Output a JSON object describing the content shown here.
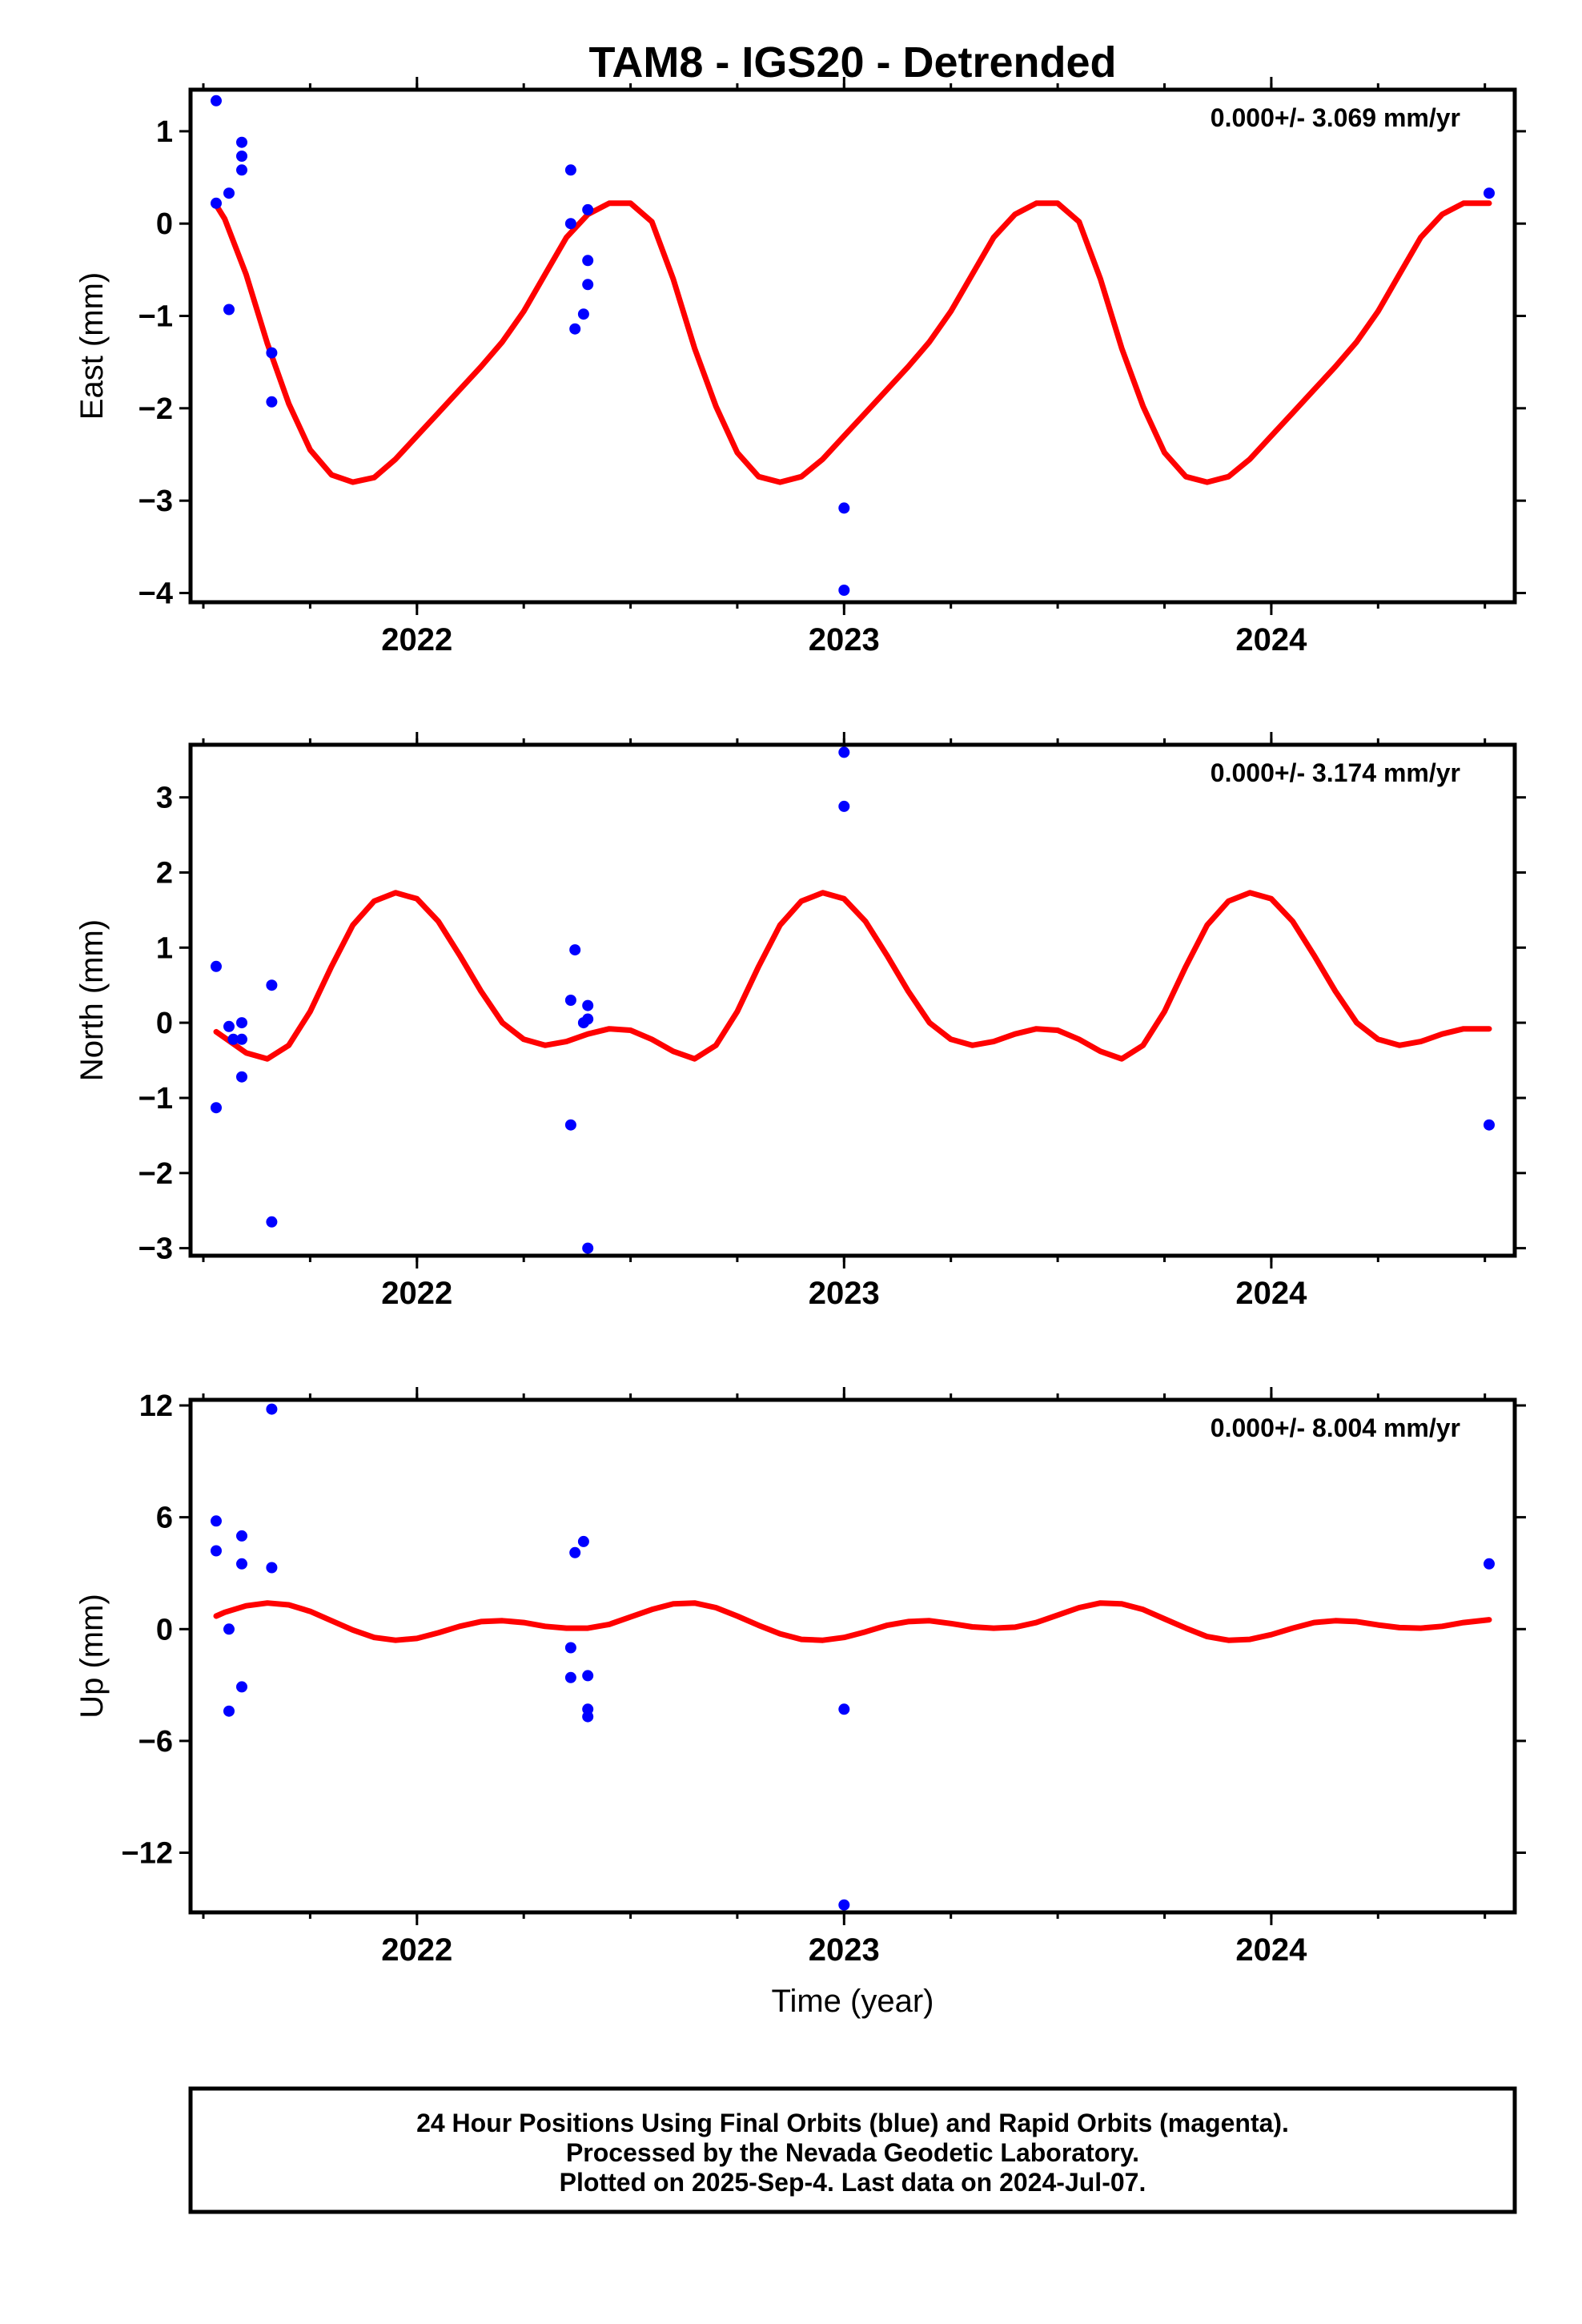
{
  "figure": {
    "title": "TAM8 - IGS20 - Detrended",
    "footer_lines": [
      "24 Hour Positions Using Final Orbits (blue) and Rapid Orbits (magenta).",
      "Processed by the Nevada Geodetic Laboratory.",
      "Plotted on 2025-Sep-4. Last data on 2024-Jul-07."
    ],
    "colors": {
      "points": "#0000ff",
      "model": "#ff0000",
      "axes": "#000000",
      "background": "#ffffff"
    }
  },
  "chart_data": [
    {
      "type": "scatter",
      "title": "TAM8 - IGS20 - Detrended",
      "ylabel": "East (mm)",
      "xlabel": "",
      "rate_text": "0.000+/- 3.069 mm/yr",
      "xlim": [
        2021.47,
        2024.57
      ],
      "ylim": [
        -4.1,
        1.45
      ],
      "x_ticks": [
        2022,
        2023,
        2024
      ],
      "x_tick_labels": [
        "2022",
        "2023",
        "2024"
      ],
      "y_ticks": [
        -4,
        -3,
        -2,
        -1,
        0,
        1
      ],
      "y_tick_labels": [
        "−4",
        "−3",
        "−2",
        "−1",
        "0",
        "1"
      ],
      "grid": false,
      "points": [
        {
          "x": 2021.53,
          "y": 1.33
        },
        {
          "x": 2021.53,
          "y": 0.22
        },
        {
          "x": 2021.56,
          "y": 0.33
        },
        {
          "x": 2021.56,
          "y": -0.93
        },
        {
          "x": 2021.59,
          "y": 0.88
        },
        {
          "x": 2021.59,
          "y": 0.73
        },
        {
          "x": 2021.59,
          "y": 0.58
        },
        {
          "x": 2021.66,
          "y": -1.4
        },
        {
          "x": 2021.66,
          "y": -1.93
        },
        {
          "x": 2022.36,
          "y": 0.58
        },
        {
          "x": 2022.36,
          "y": 0.0
        },
        {
          "x": 2022.37,
          "y": -1.14
        },
        {
          "x": 2022.39,
          "y": -0.98
        },
        {
          "x": 2022.4,
          "y": 0.15
        },
        {
          "x": 2022.4,
          "y": -0.4
        },
        {
          "x": 2022.4,
          "y": -0.66
        },
        {
          "x": 2023.0,
          "y": -3.08
        },
        {
          "x": 2023.0,
          "y": -3.97
        },
        {
          "x": 2024.51,
          "y": 0.33
        }
      ],
      "model": {
        "series": "seasonal model",
        "x_range": [
          2021.53,
          2024.51
        ],
        "x": [
          2021.53,
          2021.55,
          2021.6,
          2021.65,
          2021.7,
          2021.75,
          2021.8,
          2021.85,
          2021.9,
          2021.95,
          2022.0,
          2022.05,
          2022.1,
          2022.15,
          2022.2,
          2022.25,
          2022.3,
          2022.35,
          2022.4,
          2022.45,
          2022.5,
          2022.55,
          2022.6,
          2022.65,
          2022.7,
          2022.75,
          2022.8,
          2022.85,
          2022.9,
          2022.95,
          2023.0,
          2023.05,
          2023.1,
          2023.15,
          2023.2,
          2023.25,
          2023.3,
          2023.35,
          2023.4,
          2023.45,
          2023.5,
          2023.55,
          2023.6,
          2023.65,
          2023.7,
          2023.75,
          2023.8,
          2023.85,
          2023.9,
          2023.95,
          2024.0,
          2024.05,
          2024.1,
          2024.15,
          2024.2,
          2024.25,
          2024.3,
          2024.35,
          2024.4,
          2024.45,
          2024.51
        ],
        "y": [
          0.2,
          0.05,
          -0.55,
          -1.3,
          -1.95,
          -2.45,
          -2.72,
          -2.8,
          -2.75,
          -2.55,
          -2.3,
          -2.05,
          -1.8,
          -1.55,
          -1.28,
          -0.95,
          -0.55,
          -0.15,
          0.1,
          0.22,
          0.22,
          0.02,
          -0.6,
          -1.35,
          -1.98,
          -2.48,
          -2.74,
          -2.8,
          -2.74,
          -2.55,
          -2.3,
          -2.05,
          -1.8,
          -1.55,
          -1.28,
          -0.95,
          -0.55,
          -0.15,
          0.1,
          0.22,
          0.22,
          0.02,
          -0.6,
          -1.35,
          -1.98,
          -2.48,
          -2.74,
          -2.8,
          -2.74,
          -2.55,
          -2.3,
          -2.05,
          -1.8,
          -1.55,
          -1.28,
          -0.95,
          -0.55,
          -0.15,
          0.1,
          0.22,
          0.22
        ]
      }
    },
    {
      "type": "scatter",
      "ylabel": "North (mm)",
      "xlabel": "",
      "rate_text": "0.000+/- 3.174 mm/yr",
      "xlim": [
        2021.47,
        2024.57
      ],
      "ylim": [
        -3.1,
        3.7
      ],
      "x_ticks": [
        2022,
        2023,
        2024
      ],
      "x_tick_labels": [
        "2022",
        "2023",
        "2024"
      ],
      "y_ticks": [
        -3,
        -2,
        -1,
        0,
        1,
        2,
        3
      ],
      "y_tick_labels": [
        "−3",
        "−2",
        "−1",
        "0",
        "1",
        "2",
        "3"
      ],
      "grid": false,
      "points": [
        {
          "x": 2021.53,
          "y": 0.75
        },
        {
          "x": 2021.53,
          "y": -1.13
        },
        {
          "x": 2021.56,
          "y": -0.05
        },
        {
          "x": 2021.57,
          "y": -0.22
        },
        {
          "x": 2021.59,
          "y": 0.0
        },
        {
          "x": 2021.59,
          "y": -0.22
        },
        {
          "x": 2021.59,
          "y": -0.72
        },
        {
          "x": 2021.66,
          "y": 0.5
        },
        {
          "x": 2021.66,
          "y": -2.65
        },
        {
          "x": 2022.36,
          "y": 0.3
        },
        {
          "x": 2022.36,
          "y": -1.36
        },
        {
          "x": 2022.37,
          "y": 0.97
        },
        {
          "x": 2022.39,
          "y": 0.0
        },
        {
          "x": 2022.4,
          "y": 0.23
        },
        {
          "x": 2022.4,
          "y": 0.05
        },
        {
          "x": 2022.4,
          "y": -3.0
        },
        {
          "x": 2023.0,
          "y": 3.6
        },
        {
          "x": 2023.0,
          "y": 2.88
        },
        {
          "x": 2024.51,
          "y": -1.36
        }
      ],
      "model": {
        "series": "seasonal model",
        "x_range": [
          2021.53,
          2024.51
        ],
        "x": [
          2021.53,
          2021.55,
          2021.6,
          2021.65,
          2021.7,
          2021.75,
          2021.8,
          2021.85,
          2021.9,
          2021.95,
          2022.0,
          2022.05,
          2022.1,
          2022.15,
          2022.2,
          2022.25,
          2022.3,
          2022.35,
          2022.4,
          2022.45,
          2022.5,
          2022.55,
          2022.6,
          2022.65,
          2022.7,
          2022.75,
          2022.8,
          2022.85,
          2022.9,
          2022.95,
          2023.0,
          2023.05,
          2023.1,
          2023.15,
          2023.2,
          2023.25,
          2023.3,
          2023.35,
          2023.4,
          2023.45,
          2023.5,
          2023.55,
          2023.6,
          2023.65,
          2023.7,
          2023.75,
          2023.8,
          2023.85,
          2023.9,
          2023.95,
          2024.0,
          2024.05,
          2024.1,
          2024.15,
          2024.2,
          2024.25,
          2024.3,
          2024.35,
          2024.4,
          2024.45,
          2024.51
        ],
        "y": [
          -0.12,
          -0.2,
          -0.4,
          -0.48,
          -0.3,
          0.15,
          0.75,
          1.3,
          1.62,
          1.73,
          1.65,
          1.35,
          0.9,
          0.42,
          0.0,
          -0.22,
          -0.3,
          -0.25,
          -0.15,
          -0.08,
          -0.1,
          -0.22,
          -0.38,
          -0.48,
          -0.3,
          0.15,
          0.75,
          1.3,
          1.62,
          1.73,
          1.65,
          1.35,
          0.9,
          0.42,
          0.0,
          -0.22,
          -0.3,
          -0.25,
          -0.15,
          -0.08,
          -0.1,
          -0.22,
          -0.38,
          -0.48,
          -0.3,
          0.15,
          0.75,
          1.3,
          1.62,
          1.73,
          1.65,
          1.35,
          0.9,
          0.42,
          0.0,
          -0.22,
          -0.3,
          -0.25,
          -0.15,
          -0.08,
          -0.08
        ]
      }
    },
    {
      "type": "scatter",
      "ylabel": "Up (mm)",
      "xlabel": "Time (year)",
      "rate_text": "0.000+/- 8.004 mm/yr",
      "xlim": [
        2021.47,
        2024.57
      ],
      "ylim": [
        -15.2,
        12.3
      ],
      "x_ticks": [
        2022,
        2023,
        2024
      ],
      "x_tick_labels": [
        "2022",
        "2023",
        "2024"
      ],
      "y_ticks": [
        -12,
        -6,
        0,
        6,
        12
      ],
      "y_tick_labels": [
        "−12",
        "−6",
        "0",
        "6",
        "12"
      ],
      "grid": false,
      "points": [
        {
          "x": 2021.53,
          "y": 5.8
        },
        {
          "x": 2021.53,
          "y": 4.2
        },
        {
          "x": 2021.56,
          "y": 0.0
        },
        {
          "x": 2021.56,
          "y": -4.4
        },
        {
          "x": 2021.59,
          "y": 5.0
        },
        {
          "x": 2021.59,
          "y": 3.5
        },
        {
          "x": 2021.59,
          "y": -3.1
        },
        {
          "x": 2021.66,
          "y": 3.3
        },
        {
          "x": 2021.66,
          "y": 11.8
        },
        {
          "x": 2022.36,
          "y": -1.0
        },
        {
          "x": 2022.36,
          "y": -2.6
        },
        {
          "x": 2022.37,
          "y": 4.1
        },
        {
          "x": 2022.39,
          "y": 4.7
        },
        {
          "x": 2022.4,
          "y": -2.5
        },
        {
          "x": 2022.4,
          "y": -4.3
        },
        {
          "x": 2022.4,
          "y": -4.7
        },
        {
          "x": 2023.0,
          "y": -4.3
        },
        {
          "x": 2023.0,
          "y": -14.8
        },
        {
          "x": 2024.51,
          "y": 3.5
        }
      ],
      "model": {
        "series": "seasonal model",
        "x_range": [
          2021.53,
          2024.51
        ],
        "x": [
          2021.53,
          2021.55,
          2021.6,
          2021.65,
          2021.7,
          2021.75,
          2021.8,
          2021.85,
          2021.9,
          2021.95,
          2022.0,
          2022.05,
          2022.1,
          2022.15,
          2022.2,
          2022.25,
          2022.3,
          2022.35,
          2022.4,
          2022.45,
          2022.5,
          2022.55,
          2022.6,
          2022.65,
          2022.7,
          2022.75,
          2022.8,
          2022.85,
          2022.9,
          2022.95,
          2023.0,
          2023.05,
          2023.1,
          2023.15,
          2023.2,
          2023.25,
          2023.3,
          2023.35,
          2023.4,
          2023.45,
          2023.5,
          2023.55,
          2023.6,
          2023.65,
          2023.7,
          2023.75,
          2023.8,
          2023.85,
          2023.9,
          2023.95,
          2024.0,
          2024.05,
          2024.1,
          2024.15,
          2024.2,
          2024.25,
          2024.3,
          2024.35,
          2024.4,
          2024.45,
          2024.51
        ],
        "y": [
          0.7,
          0.9,
          1.25,
          1.4,
          1.3,
          0.95,
          0.45,
          -0.05,
          -0.45,
          -0.6,
          -0.5,
          -0.2,
          0.15,
          0.4,
          0.45,
          0.35,
          0.15,
          0.05,
          0.05,
          0.25,
          0.65,
          1.05,
          1.35,
          1.4,
          1.15,
          0.7,
          0.2,
          -0.25,
          -0.55,
          -0.6,
          -0.45,
          -0.15,
          0.2,
          0.4,
          0.45,
          0.3,
          0.12,
          0.05,
          0.1,
          0.35,
          0.75,
          1.15,
          1.4,
          1.35,
          1.05,
          0.55,
          0.05,
          -0.4,
          -0.6,
          -0.55,
          -0.3,
          0.05,
          0.35,
          0.45,
          0.4,
          0.22,
          0.08,
          0.05,
          0.15,
          0.35,
          0.5
        ]
      }
    }
  ]
}
